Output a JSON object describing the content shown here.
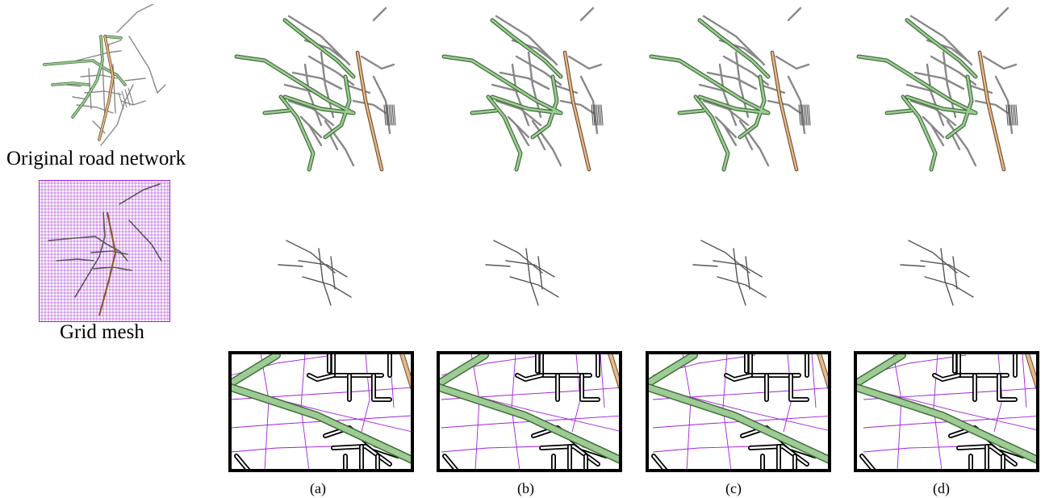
{
  "captions": {
    "original": "Original road network",
    "grid": "Grid mesh"
  },
  "variants": [
    {
      "id": "a",
      "label": "(a)"
    },
    {
      "id": "b",
      "label": "(b)"
    },
    {
      "id": "c",
      "label": "(c)"
    },
    {
      "id": "d",
      "label": "(d)"
    }
  ],
  "colors": {
    "mesh": "#a020d8",
    "major_road": "#3e6e3a",
    "major_road_fill": "#9ecb94",
    "highway": "#6e4a2a",
    "highway_fill": "#e6b98a",
    "minor_road": "#888888",
    "zoom_road": "#000000"
  }
}
